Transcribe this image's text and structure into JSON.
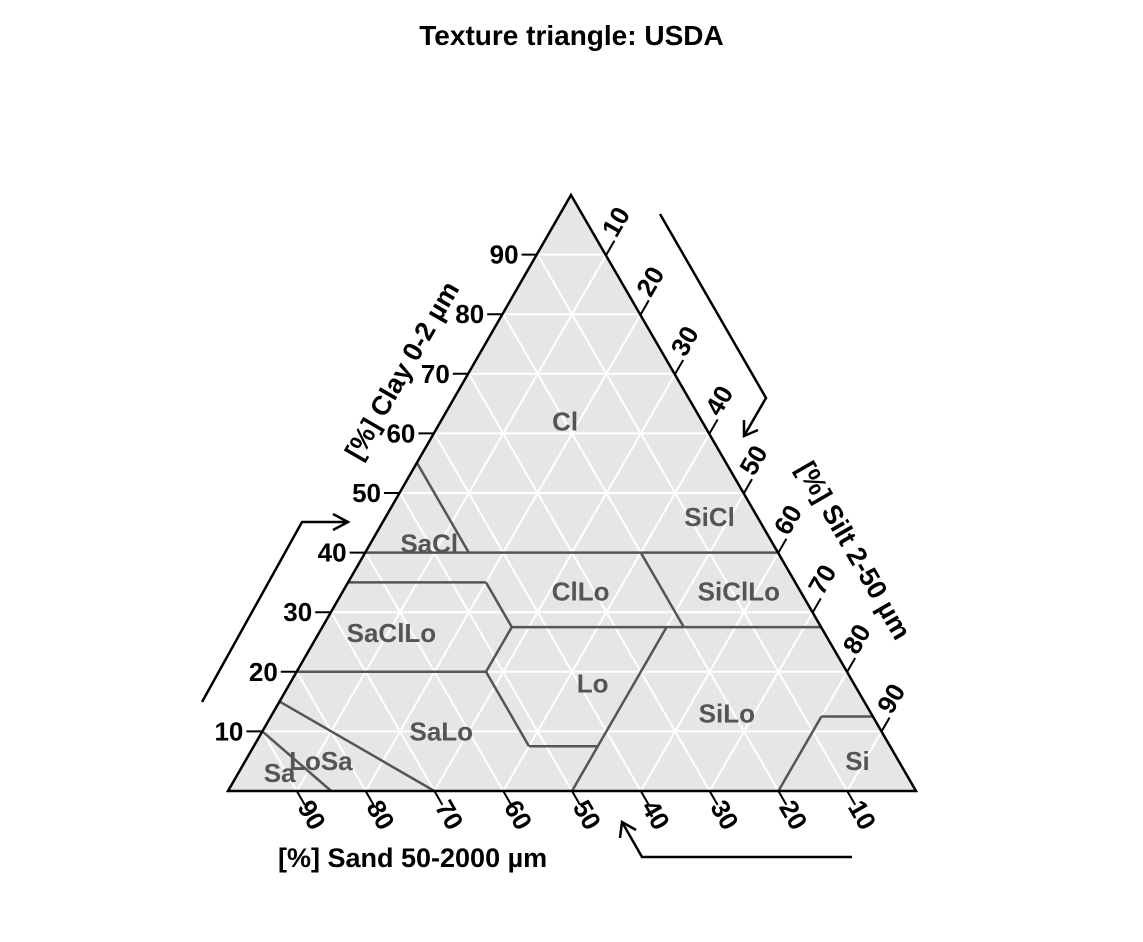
{
  "chart_data": {
    "type": "ternary",
    "title": "Texture triangle: USDA",
    "colors": {
      "background": "#e6e6e6",
      "grid": "#ffffff",
      "boundary": "#555555",
      "frame": "#000000",
      "class_label": "#555555"
    },
    "grid": true,
    "axes": {
      "clay": {
        "label": "[%] Clay 0-2 µm",
        "ticks": [
          10,
          20,
          30,
          40,
          50,
          60,
          70,
          80,
          90
        ]
      },
      "silt": {
        "label": "[%] Silt 2-50 µm",
        "ticks": [
          10,
          20,
          30,
          40,
          50,
          60,
          70,
          80,
          90
        ]
      },
      "sand": {
        "label": "[%] Sand 50-2000 µm",
        "ticks": [
          90,
          80,
          70,
          60,
          50,
          40,
          30,
          20,
          10
        ]
      }
    },
    "boundaries": [
      [
        [
          55,
          45,
          0
        ],
        [
          40,
          45,
          15
        ]
      ],
      [
        [
          40,
          60,
          0
        ],
        [
          40,
          20,
          40
        ]
      ],
      [
        [
          35,
          65,
          0
        ],
        [
          35,
          45,
          20
        ]
      ],
      [
        [
          35,
          45,
          20
        ],
        [
          27.5,
          45,
          27.5
        ]
      ],
      [
        [
          27.5,
          45,
          27.5
        ],
        [
          27.5,
          20,
          52.5
        ]
      ],
      [
        [
          27.5,
          45,
          27.5
        ],
        [
          20,
          52.5,
          27.5
        ]
      ],
      [
        [
          20,
          80,
          0
        ],
        [
          20,
          52.5,
          27.5
        ]
      ],
      [
        [
          20,
          52.5,
          27.5
        ],
        [
          7.5,
          52.5,
          40
        ]
      ],
      [
        [
          7.5,
          52.5,
          40
        ],
        [
          7.5,
          42.5,
          50
        ]
      ],
      [
        [
          7.5,
          42.5,
          50
        ],
        [
          0,
          50,
          50
        ]
      ],
      [
        [
          7.5,
          42.5,
          50
        ],
        [
          27.5,
          22.5,
          50
        ]
      ],
      [
        [
          40,
          20,
          40
        ],
        [
          27.5,
          20,
          52.5
        ]
      ],
      [
        [
          40,
          0,
          60
        ],
        [
          40,
          20,
          40
        ]
      ],
      [
        [
          27.5,
          20,
          52.5
        ],
        [
          27.5,
          0,
          72.5
        ]
      ],
      [
        [
          15,
          85,
          0
        ],
        [
          0,
          70,
          30
        ]
      ],
      [
        [
          10,
          90,
          0
        ],
        [
          0,
          85,
          15
        ]
      ],
      [
        [
          12.5,
          7.5,
          80
        ],
        [
          12.5,
          0,
          87.5
        ]
      ],
      [
        [
          12.5,
          7.5,
          80
        ],
        [
          0,
          20,
          80
        ]
      ]
    ],
    "classes": [
      {
        "name": "Cl",
        "pos": [
          62,
          20,
          18
        ]
      },
      {
        "name": "SiCl",
        "pos": [
          46,
          7,
          47
        ]
      },
      {
        "name": "SaCl",
        "pos": [
          41.5,
          50,
          8.5
        ]
      },
      {
        "name": "ClLo",
        "pos": [
          33.5,
          32,
          34.5
        ]
      },
      {
        "name": "SiClLo",
        "pos": [
          33.5,
          9,
          57.5
        ]
      },
      {
        "name": "SaClLo",
        "pos": [
          26.5,
          63,
          10.5
        ]
      },
      {
        "name": "Lo",
        "pos": [
          18,
          38,
          44
        ]
      },
      {
        "name": "SiLo",
        "pos": [
          13,
          21,
          66
        ]
      },
      {
        "name": "SaLo",
        "pos": [
          10,
          64,
          26
        ]
      },
      {
        "name": "LoSa",
        "pos": [
          5,
          84,
          11
        ]
      },
      {
        "name": "Si",
        "pos": [
          5,
          6,
          89
        ]
      },
      {
        "name": "Sa",
        "pos": [
          3,
          91,
          6
        ]
      }
    ]
  }
}
